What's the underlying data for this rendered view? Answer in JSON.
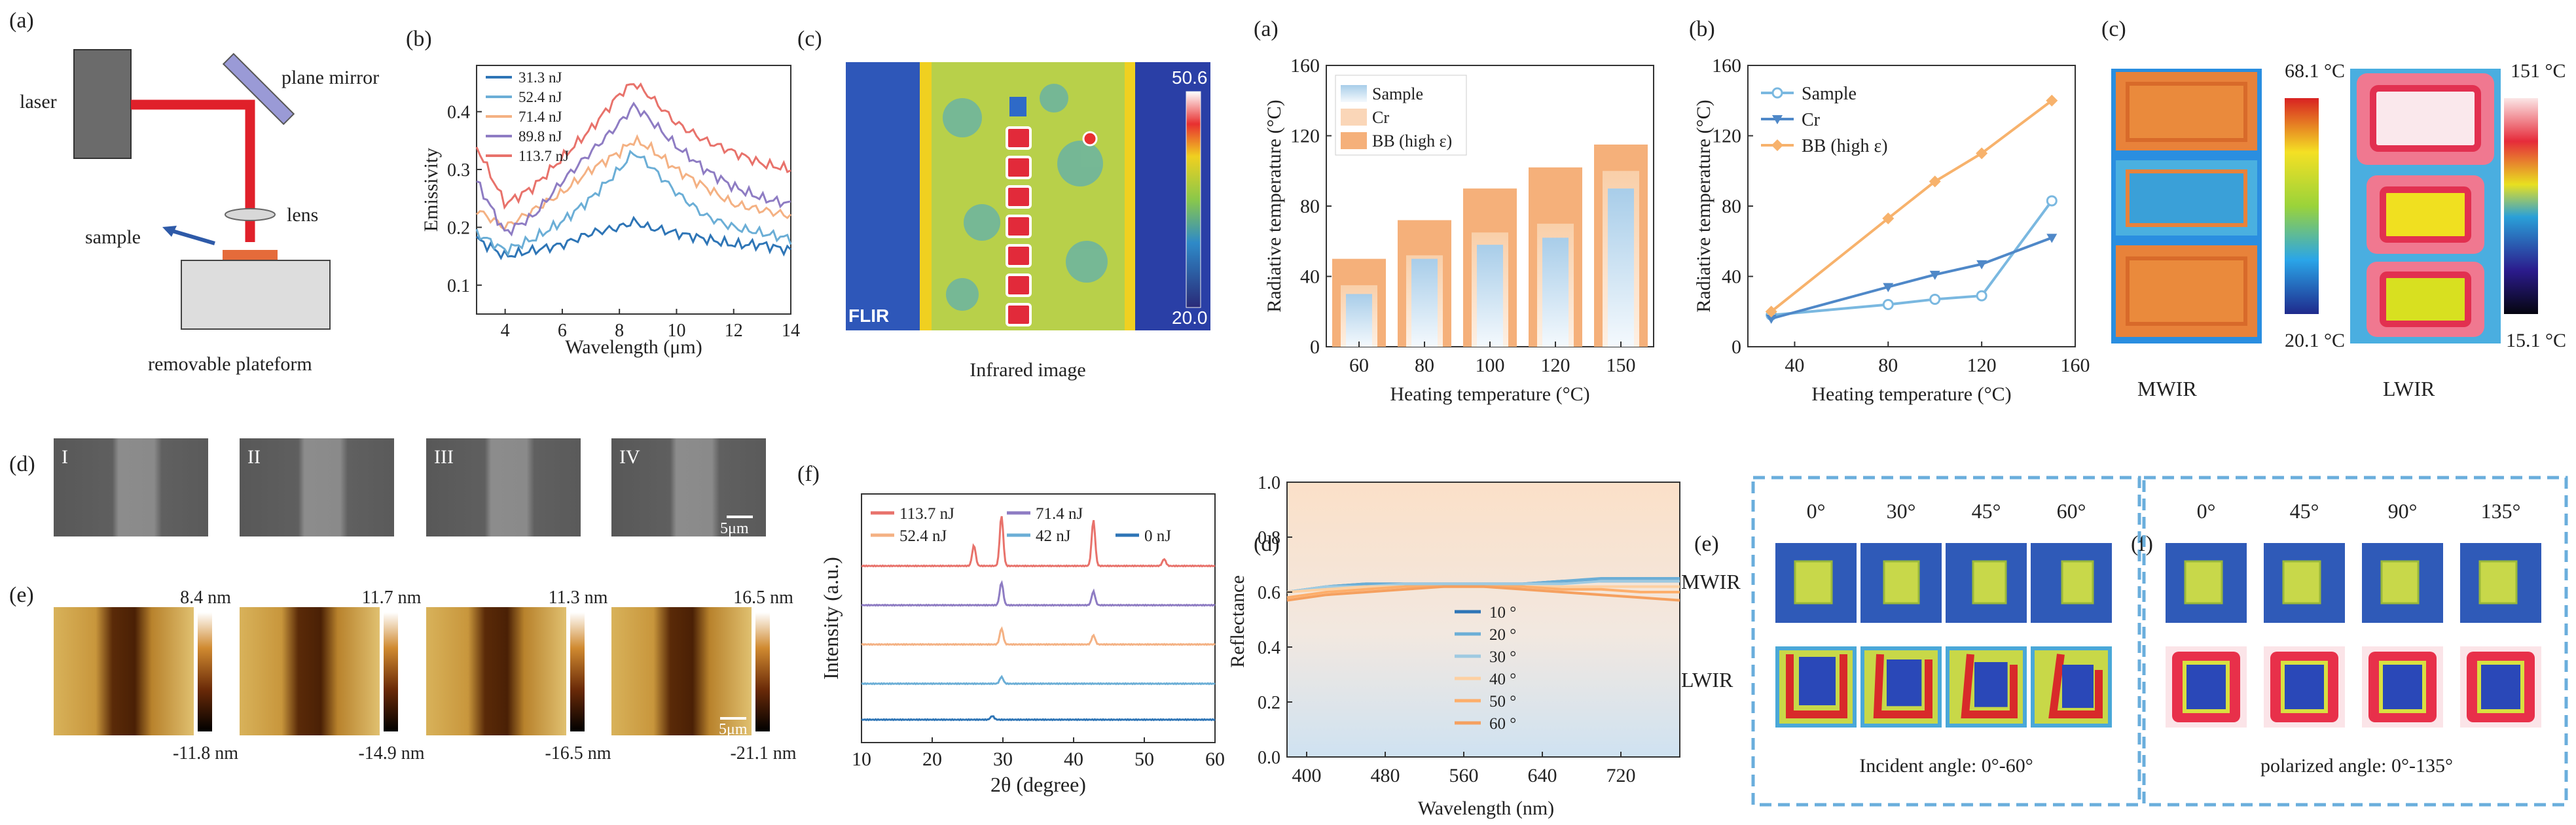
{
  "colors": {
    "red_series": "#e8726b",
    "purple_series": "#8e7cc3",
    "orange_series": "#f4b183",
    "teal_series": "#6baed6",
    "blue_series": "#2e75b6",
    "bar_bb": "#f5b07a",
    "bar_cr": "#fad6b8",
    "bar_sample": "#bcd9ee",
    "line_bb": "#f7b26c",
    "line_cr": "#4f88c8",
    "line_sample": "#7ab8e0",
    "dash_box": "#6aaedc",
    "afm_dark": "#3a1a05",
    "afm_mid": "#b57a2a",
    "afm_light": "#e8c878"
  },
  "left": {
    "panel_a": {
      "letter": "(a)",
      "labels": {
        "laser": "laser",
        "mirror": "plane mirror",
        "lens": "lens",
        "sample": "sample",
        "platform": "removable plateform"
      }
    },
    "panel_b": {
      "letter": "(b)",
      "xlabel": "Wavelength (μm)",
      "ylabel": "Emissivity",
      "xticks": [
        "4",
        "6",
        "8",
        "10",
        "12",
        "14"
      ],
      "yticks": [
        "0.1",
        "0.2",
        "0.3",
        "0.4"
      ]
    },
    "panel_c": {
      "letter": "(c)",
      "caption": "Infrared image",
      "scale_max": "50.6",
      "scale_min": "20.0",
      "brand": "FLIR"
    },
    "panel_d": {
      "letter": "(d)",
      "tiles": [
        "I",
        "II",
        "III",
        "IV"
      ],
      "scale": "5μm"
    },
    "panel_e": {
      "letter": "(e)",
      "max_labels": [
        "8.4 nm",
        "11.7 nm",
        "11.3 nm",
        "16.5 nm"
      ],
      "min_labels": [
        "-11.8 nm",
        "-14.9 nm",
        "-16.5 nm",
        "-21.1 nm"
      ],
      "scale": "5μm"
    },
    "panel_f": {
      "letter": "(f)",
      "xlabel": "2θ (degree)",
      "ylabel": "Intensity (a.u.)",
      "xticks": [
        "10",
        "20",
        "30",
        "40",
        "50",
        "60"
      ]
    }
  },
  "right": {
    "panel_a": {
      "letter": "(a)",
      "xlabel": "Heating temperature (°C)",
      "ylabel": "Radiative temperature (°C)",
      "yticks": [
        "0",
        "40",
        "80",
        "120",
        "160"
      ]
    },
    "panel_b": {
      "letter": "(b)",
      "xlabel": "Heating temperature (°C)",
      "ylabel": "Radiative temperature (°C)",
      "xticks": [
        "40",
        "80",
        "120",
        "160"
      ],
      "yticks": [
        "0",
        "40",
        "80",
        "120",
        "160"
      ]
    },
    "panel_c": {
      "letter": "(c)",
      "mwir_max": "68.1 °C",
      "mwir_min": "20.1 °C",
      "lwir_max": "151 °C",
      "lwir_min": "15.1 °C",
      "mwir": "MWIR",
      "lwir": "LWIR"
    },
    "panel_d": {
      "letter": "(d)",
      "xlabel": "Wavelength (nm)",
      "ylabel": "Reflectance",
      "xticks": [
        "400",
        "480",
        "560",
        "640",
        "720"
      ],
      "yticks": [
        "0.0",
        "0.2",
        "0.4",
        "0.6",
        "0.8",
        "1.0"
      ],
      "band_mwir": "MWIR",
      "band_lwir": "LWIR"
    },
    "panel_e": {
      "letter": "(e)",
      "angles": [
        "0°",
        "30°",
        "45°",
        "60°"
      ],
      "caption": "Incident angle: 0°-60°"
    },
    "panel_f": {
      "letter": "(f)",
      "angles": [
        "0°",
        "45°",
        "90°",
        "135°"
      ],
      "caption": "polarized angle: 0°-135°"
    }
  },
  "chart_data": [
    {
      "id": "emissivity",
      "type": "line",
      "xlabel": "Wavelength (μm)",
      "ylabel": "Emissivity",
      "xlim": [
        3,
        14
      ],
      "ylim": [
        0.05,
        0.48
      ],
      "x": [
        3,
        4,
        5,
        6,
        7,
        8,
        8.5,
        9,
        10,
        11,
        12,
        13,
        14
      ],
      "series": [
        {
          "name": "31.3 nJ",
          "color": "#2e75b6",
          "values": [
            0.18,
            0.15,
            0.16,
            0.17,
            0.19,
            0.2,
            0.21,
            0.2,
            0.19,
            0.18,
            0.17,
            0.17,
            0.16
          ]
        },
        {
          "name": "52.4 nJ",
          "color": "#6baed6",
          "values": [
            0.19,
            0.16,
            0.18,
            0.21,
            0.25,
            0.3,
            0.33,
            0.31,
            0.26,
            0.22,
            0.2,
            0.19,
            0.18
          ]
        },
        {
          "name": "71.4 nJ",
          "color": "#f4b183",
          "values": [
            0.23,
            0.2,
            0.23,
            0.26,
            0.3,
            0.33,
            0.35,
            0.34,
            0.3,
            0.27,
            0.24,
            0.23,
            0.22
          ]
        },
        {
          "name": "89.8 nJ",
          "color": "#8e7cc3",
          "values": [
            0.28,
            0.19,
            0.22,
            0.28,
            0.33,
            0.38,
            0.41,
            0.39,
            0.34,
            0.3,
            0.27,
            0.25,
            0.24
          ]
        },
        {
          "name": "113.7 nJ",
          "color": "#e8726b",
          "values": [
            0.34,
            0.24,
            0.27,
            0.32,
            0.37,
            0.43,
            0.45,
            0.43,
            0.38,
            0.35,
            0.33,
            0.31,
            0.3
          ]
        }
      ]
    },
    {
      "id": "xrd",
      "type": "line",
      "xlabel": "2θ (degree)",
      "ylabel": "Intensity (a.u.)",
      "xlim": [
        10,
        60
      ],
      "series": [
        {
          "name": "113.7 nJ",
          "color": "#e8726b",
          "offset": 4,
          "peaks": [
            [
              25.9,
              0.45
            ],
            [
              29.8,
              1.1
            ],
            [
              42.8,
              1.0
            ],
            [
              52.8,
              0.15
            ]
          ]
        },
        {
          "name": "71.4 nJ",
          "color": "#8e7cc3",
          "offset": 3,
          "peaks": [
            [
              29.8,
              0.5
            ],
            [
              42.8,
              0.3
            ]
          ]
        },
        {
          "name": "52.4 nJ",
          "color": "#f4b183",
          "offset": 2,
          "peaks": [
            [
              29.8,
              0.35
            ],
            [
              42.8,
              0.2
            ]
          ]
        },
        {
          "name": "42 nJ",
          "color": "#6baed6",
          "offset": 1,
          "peaks": [
            [
              29.8,
              0.15
            ]
          ]
        },
        {
          "name": "0 nJ",
          "color": "#2e75b6",
          "offset": 0,
          "peaks": [
            [
              28.5,
              0.08
            ]
          ]
        }
      ]
    },
    {
      "id": "bars",
      "type": "bar",
      "categories": [
        "60",
        "80",
        "100",
        "120",
        "150"
      ],
      "xlabel": "Heating temperature (°C)",
      "ylabel": "Radiative temperature (°C)",
      "ylim": [
        0,
        160
      ],
      "series": [
        {
          "name": "BB (high ε)",
          "color": "#f5b07a",
          "values": [
            50,
            72,
            90,
            102,
            115
          ]
        },
        {
          "name": "Cr",
          "color": "#fad6b8",
          "values": [
            35,
            52,
            65,
            70,
            100
          ]
        },
        {
          "name": "Sample",
          "color": "#bcd9ee",
          "values": [
            30,
            50,
            58,
            62,
            90
          ]
        }
      ]
    },
    {
      "id": "lines",
      "type": "line",
      "xlabel": "Heating temperature (°C)",
      "ylabel": "Radiative temperature (°C)",
      "xlim": [
        20,
        160
      ],
      "ylim": [
        0,
        160
      ],
      "x": [
        30,
        80,
        100,
        120,
        150
      ],
      "series": [
        {
          "name": "Sample",
          "color": "#7ab8e0",
          "marker": "circle",
          "values": [
            18,
            24,
            27,
            29,
            83
          ]
        },
        {
          "name": "Cr",
          "color": "#4f88c8",
          "marker": "triangle",
          "values": [
            16,
            34,
            41,
            47,
            62
          ]
        },
        {
          "name": "BB (high ε)",
          "color": "#f7b26c",
          "marker": "diamond",
          "values": [
            20,
            73,
            94,
            110,
            140
          ]
        }
      ]
    },
    {
      "id": "reflectance",
      "type": "line",
      "xlabel": "Wavelength (nm)",
      "ylabel": "Reflectance",
      "xlim": [
        380,
        780
      ],
      "ylim": [
        0,
        1
      ],
      "x": [
        380,
        420,
        460,
        500,
        540,
        580,
        620,
        660,
        700,
        740,
        780
      ],
      "series": [
        {
          "name": "10 °",
          "color": "#2e75b6",
          "values": [
            0.6,
            0.62,
            0.63,
            0.63,
            0.63,
            0.63,
            0.63,
            0.64,
            0.64,
            0.64,
            0.64
          ]
        },
        {
          "name": "20 °",
          "color": "#6baed6",
          "values": [
            0.6,
            0.62,
            0.63,
            0.63,
            0.63,
            0.63,
            0.63,
            0.64,
            0.65,
            0.65,
            0.65
          ]
        },
        {
          "name": "30 °",
          "color": "#9ecae1",
          "values": [
            0.6,
            0.62,
            0.62,
            0.63,
            0.63,
            0.63,
            0.63,
            0.63,
            0.64,
            0.64,
            0.64
          ]
        },
        {
          "name": "40 °",
          "color": "#fdd0a2",
          "values": [
            0.6,
            0.61,
            0.62,
            0.62,
            0.62,
            0.62,
            0.62,
            0.62,
            0.62,
            0.62,
            0.62
          ]
        },
        {
          "name": "50 °",
          "color": "#fdae6b",
          "values": [
            0.58,
            0.6,
            0.61,
            0.62,
            0.62,
            0.62,
            0.62,
            0.61,
            0.61,
            0.6,
            0.6
          ]
        },
        {
          "name": "60 °",
          "color": "#f5a05f",
          "values": [
            0.57,
            0.59,
            0.6,
            0.61,
            0.62,
            0.62,
            0.61,
            0.6,
            0.59,
            0.58,
            0.57
          ]
        }
      ]
    }
  ]
}
